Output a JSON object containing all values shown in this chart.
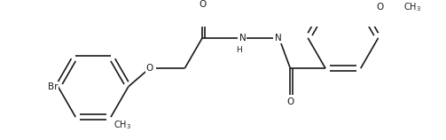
{
  "bg_color": "#ffffff",
  "line_color": "#1a1a1a",
  "figsize": [
    5.03,
    1.58
  ],
  "dpi": 100,
  "bond_lw": 1.2,
  "font_size": 7.5,
  "xlim": [
    0.0,
    10.0
  ],
  "ylim": [
    0.0,
    3.2
  ]
}
